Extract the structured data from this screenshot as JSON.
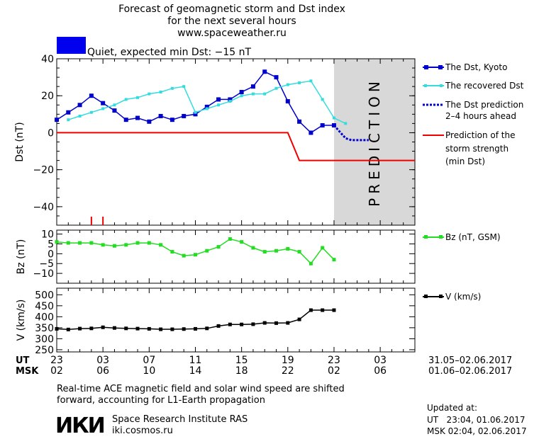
{
  "header": {
    "title_line1": "Forecast of geomagnetic storm and Dst index",
    "title_line2": "for the next several hours",
    "website": "www.spaceweather.ru",
    "status_text": "Quiet, expected min Dst: −15 nT",
    "status_color": "#0000ee"
  },
  "colors": {
    "dst": "#0000cc",
    "recovered": "#33dddd",
    "storm": "#ee0000",
    "bz": "#22dd22",
    "v": "#000000",
    "prediction_bg": "#d8d8d8"
  },
  "legend": {
    "dst": "The Dst, Kyoto",
    "recovered": "The recovered Dst",
    "prediction_line1": "The Dst prediction",
    "prediction_line2": "2–4 hours ahead",
    "storm_line1": "Prediction of the",
    "storm_line2": "storm strength",
    "storm_line3": "(min Dst)",
    "bz": "Bz (nT, GSM)",
    "v": "V (km/s)"
  },
  "axes": {
    "prediction_label": "PREDICTION",
    "ut_label": "UT",
    "msk_label": "MSK",
    "ut_ticks": [
      "23",
      "03",
      "07",
      "11",
      "15",
      "19",
      "23",
      "03"
    ],
    "msk_ticks": [
      "02",
      "06",
      "10",
      "14",
      "18",
      "22",
      "02",
      "06"
    ],
    "ut_range": "31.05–02.06.2017",
    "msk_range": "01.06–02.06.2017"
  },
  "footer": {
    "note_line1": "Real-time ACE magnetic field and solar wind speed are shifted",
    "note_line2": "forward, accounting for L1-Earth propagation",
    "logo": "ИКИ",
    "institute": "Space Research Institute RAS",
    "institute_site": "iki.cosmos.ru",
    "updated_label": "Updated at:",
    "updated_ut": "UT   23:04, 01.06.2017",
    "updated_msk": "MSK 02:04, 02.06.2017"
  },
  "chart_data": [
    {
      "type": "line",
      "ylabel": "Dst (nT)",
      "xlim": [
        23,
        54
      ],
      "ylim": [
        -50,
        40
      ],
      "yticks": [
        40,
        20,
        0,
        -20,
        -40
      ],
      "prediction_start": 47,
      "series": [
        {
          "name": "The Dst, Kyoto",
          "x": [
            23,
            24,
            25,
            26,
            27,
            28,
            29,
            30,
            31,
            32,
            33,
            34,
            35,
            36,
            37,
            38,
            39,
            40,
            41,
            42,
            43,
            44,
            45,
            46,
            47
          ],
          "values": [
            7,
            11,
            15,
            20,
            16,
            12,
            7,
            8,
            6,
            9,
            7,
            9,
            10,
            14,
            18,
            18,
            22,
            25,
            33,
            30,
            17,
            6,
            0,
            4,
            4
          ]
        },
        {
          "name": "The recovered Dst",
          "x": [
            24,
            25,
            26,
            27,
            28,
            29,
            30,
            31,
            32,
            33,
            34,
            35,
            36,
            37,
            38,
            39,
            40,
            41,
            42,
            43,
            44,
            45,
            46,
            47,
            48
          ],
          "values": [
            7,
            9,
            11,
            13,
            15,
            18,
            19,
            21,
            22,
            24,
            25,
            11,
            13,
            15,
            17,
            20,
            21,
            21,
            24,
            26,
            27,
            28,
            18,
            8,
            5
          ]
        },
        {
          "name": "The Dst prediction 2–4 hours ahead",
          "x": [
            47,
            48,
            48.5,
            50
          ],
          "values": [
            4,
            -3,
            -4,
            -4
          ]
        },
        {
          "name": "Prediction of the storm strength (min Dst)",
          "x": [
            23,
            43,
            44,
            54
          ],
          "values": [
            0,
            0,
            -15,
            -15
          ]
        }
      ],
      "storm_markers_x": [
        26,
        27
      ]
    },
    {
      "type": "line",
      "ylabel": "Bz (nT)",
      "xlim": [
        23,
        54
      ],
      "ylim": [
        -15,
        12
      ],
      "yticks": [
        10,
        5,
        0,
        -5,
        -10
      ],
      "series": [
        {
          "name": "Bz (nT, GSM)",
          "x": [
            23,
            24,
            25,
            26,
            27,
            28,
            29,
            30,
            31,
            32,
            33,
            34,
            35,
            36,
            37,
            38,
            39,
            40,
            41,
            42,
            43,
            44,
            45,
            46,
            47
          ],
          "values": [
            6,
            5.5,
            5.5,
            5.5,
            4.5,
            4,
            4.5,
            5.5,
            5.5,
            4.5,
            1,
            -1,
            -0.5,
            1.5,
            3.5,
            7.5,
            6,
            3,
            1,
            1.5,
            2.5,
            1,
            -5,
            3,
            -3
          ]
        }
      ]
    },
    {
      "type": "line",
      "ylabel": "V (km/s)",
      "xlim": [
        23,
        54
      ],
      "ylim": [
        240,
        530
      ],
      "yticks": [
        500,
        450,
        400,
        350,
        300,
        250
      ],
      "series": [
        {
          "name": "V (km/s)",
          "x": [
            23,
            24,
            25,
            26,
            27,
            28,
            29,
            30,
            31,
            32,
            33,
            34,
            35,
            36,
            37,
            38,
            39,
            40,
            41,
            42,
            43,
            44,
            45,
            46,
            47
          ],
          "values": [
            345,
            342,
            346,
            347,
            352,
            349,
            347,
            346,
            345,
            343,
            343,
            344,
            345,
            347,
            358,
            365,
            365,
            366,
            372,
            371,
            372,
            388,
            430,
            430,
            430
          ]
        }
      ]
    }
  ]
}
